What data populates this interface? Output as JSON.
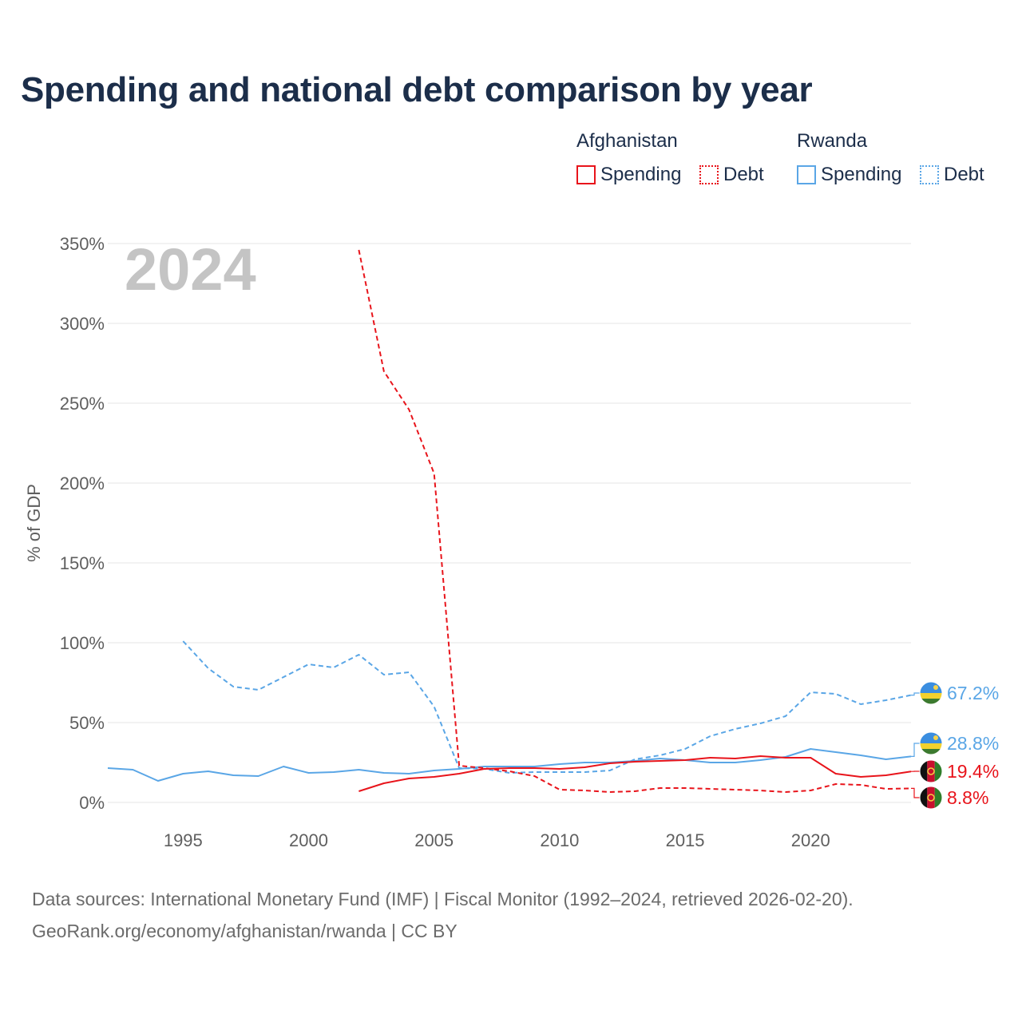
{
  "title": "Spending and national debt comparison by year",
  "legend": {
    "groups": [
      {
        "name": "Afghanistan",
        "color": "#e8141b",
        "items": [
          {
            "label": "Spending",
            "style": "solid"
          },
          {
            "label": "Debt",
            "style": "dotted"
          }
        ]
      },
      {
        "name": "Rwanda",
        "color": "#5aa6e6",
        "items": [
          {
            "label": "Spending",
            "style": "solid"
          },
          {
            "label": "Debt",
            "style": "dotted"
          }
        ]
      }
    ]
  },
  "year_label": "2024",
  "source": {
    "line1": "Data sources: International Monetary Fund (IMF) | Fiscal Monitor (1992–2024, retrieved 2026-02-20).",
    "line2": "GeoRank.org/economy/afghanistan/rwanda | CC BY"
  },
  "chart_data": {
    "type": "line",
    "title": "Spending and national debt comparison by year",
    "xlabel": "",
    "ylabel": "% of GDP",
    "xlim": [
      1992,
      2024
    ],
    "ylim": [
      0,
      350
    ],
    "x_ticks": [
      1995,
      2000,
      2005,
      2010,
      2015,
      2020
    ],
    "y_ticks": [
      {
        "value": 0,
        "label": "0%"
      },
      {
        "value": 50,
        "label": "50%"
      },
      {
        "value": 100,
        "label": "100%"
      },
      {
        "value": 150,
        "label": "150%"
      },
      {
        "value": 200,
        "label": "200%"
      },
      {
        "value": 250,
        "label": "250%"
      },
      {
        "value": 300,
        "label": "300%"
      },
      {
        "value": 350,
        "label": "350%"
      }
    ],
    "grid": true,
    "series": [
      {
        "name": "Rwanda Debt",
        "country": "Rwanda",
        "metric": "Debt",
        "color": "#5aa6e6",
        "dash": true,
        "x": [
          1995,
          1996,
          1997,
          1998,
          1999,
          2000,
          2001,
          2002,
          2003,
          2004,
          2005,
          2006,
          2007,
          2008,
          2009,
          2010,
          2011,
          2012,
          2013,
          2014,
          2015,
          2016,
          2017,
          2018,
          2019,
          2020,
          2021,
          2022,
          2023,
          2024
        ],
        "values": [
          101,
          84,
          72.5,
          70.5,
          78.5,
          86.5,
          84.5,
          92.5,
          80,
          81.5,
          60,
          21.5,
          21,
          18.5,
          19,
          19,
          19,
          20,
          27,
          29.5,
          33.5,
          41.5,
          46,
          49.5,
          54,
          69,
          68,
          61.5,
          64,
          67.2
        ],
        "end_label": "67.2%"
      },
      {
        "name": "Rwanda Spending",
        "country": "Rwanda",
        "metric": "Spending",
        "color": "#5aa6e6",
        "dash": false,
        "x": [
          1992,
          1993,
          1994,
          1995,
          1996,
          1997,
          1998,
          1999,
          2000,
          2001,
          2002,
          2003,
          2004,
          2005,
          2006,
          2007,
          2008,
          2009,
          2010,
          2011,
          2012,
          2013,
          2014,
          2015,
          2016,
          2017,
          2018,
          2019,
          2020,
          2021,
          2022,
          2023,
          2024
        ],
        "values": [
          21.5,
          20.5,
          13.5,
          18,
          19.5,
          17,
          16.5,
          22.5,
          18.5,
          19,
          20.5,
          18.5,
          18,
          20,
          21,
          22.5,
          22.5,
          22.5,
          24,
          25,
          25,
          26,
          27.5,
          26.5,
          25,
          25,
          26.5,
          28.5,
          33.5,
          31.5,
          29.5,
          27,
          28.8
        ],
        "end_label": "28.8%"
      },
      {
        "name": "Afghanistan Spending",
        "country": "Afghanistan",
        "metric": "Spending",
        "color": "#e8141b",
        "dash": false,
        "x": [
          2002,
          2003,
          2004,
          2005,
          2006,
          2007,
          2008,
          2009,
          2010,
          2011,
          2012,
          2013,
          2014,
          2015,
          2016,
          2017,
          2018,
          2019,
          2020,
          2021,
          2022,
          2023,
          2024
        ],
        "values": [
          7,
          12,
          15,
          16,
          18,
          21,
          21.5,
          21.5,
          21,
          22,
          24.5,
          25.5,
          26,
          26.5,
          28,
          27.5,
          29,
          28,
          28,
          18,
          16,
          17,
          19.4
        ],
        "end_label": "19.4%"
      },
      {
        "name": "Afghanistan Debt",
        "country": "Afghanistan",
        "metric": "Debt",
        "color": "#e8141b",
        "dash": true,
        "x": [
          2002,
          2003,
          2004,
          2005,
          2006,
          2007,
          2008,
          2009,
          2010,
          2011,
          2012,
          2013,
          2014,
          2015,
          2016,
          2017,
          2018,
          2019,
          2020,
          2021,
          2022,
          2023,
          2024
        ],
        "values": [
          346,
          270,
          246,
          206,
          23,
          21.5,
          19.5,
          16.5,
          8,
          7.5,
          6.5,
          7,
          9,
          9,
          8.5,
          8,
          7.5,
          6.5,
          7.5,
          11.5,
          11,
          8.5,
          8.8
        ],
        "end_label": "8.8%"
      }
    ]
  }
}
